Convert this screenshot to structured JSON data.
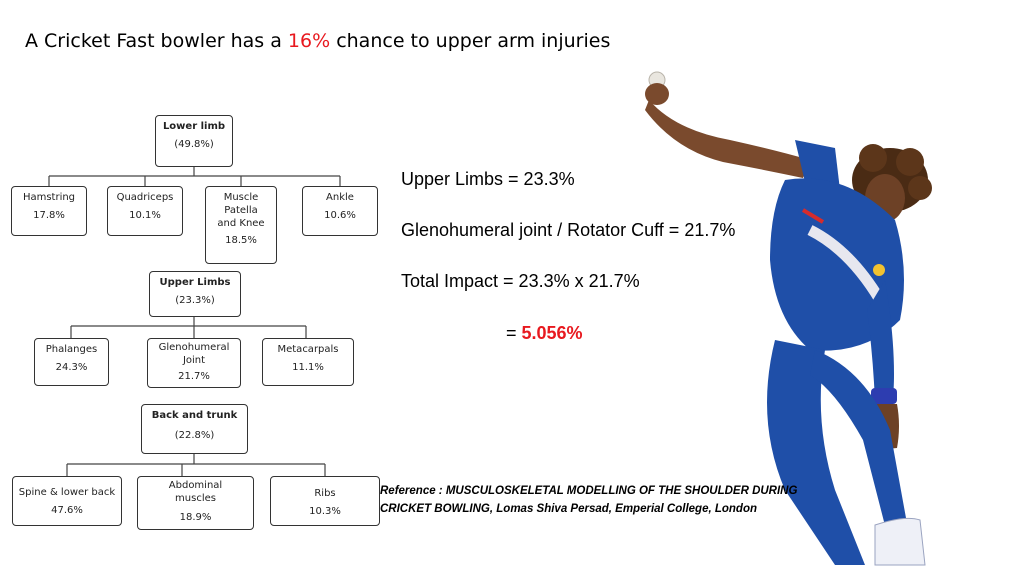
{
  "title": {
    "prefix": "A Cricket Fast bowler has a ",
    "highlight": "16%",
    "suffix": " chance to upper arm injuries"
  },
  "diagram": {
    "lower_limb": {
      "name": "Lower limb",
      "value": "(49.8%)",
      "children": [
        {
          "name": "Hamstring",
          "value": "17.8%"
        },
        {
          "name": "Quadriceps",
          "value": "10.1%"
        },
        {
          "name": "Muscle Patella and Knee",
          "value": "18.5%"
        },
        {
          "name": "Ankle",
          "value": "10.6%"
        }
      ]
    },
    "upper_limbs": {
      "name": "Upper Limbs",
      "value": "(23.3%)",
      "children": [
        {
          "name": "Phalanges",
          "value": "24.3%"
        },
        {
          "name": "Glenohumeral Joint",
          "value": "21.7%"
        },
        {
          "name": "Metacarpals",
          "value": "11.1%"
        }
      ]
    },
    "back_trunk": {
      "name": "Back and trunk",
      "value": "(22.8%)",
      "children": [
        {
          "name": "Spine & lower back",
          "value": "47.6%"
        },
        {
          "name": "Abdominal muscles",
          "value": "18.9%"
        },
        {
          "name": "Ribs",
          "value": "10.3%"
        }
      ]
    }
  },
  "equations": {
    "upper_limbs": "Upper Limbs = 23.3%",
    "glenohumeral": "Glenohumeral joint / Rotator Cuff = 21.7%",
    "total_impact": "Total Impact = 23.3% x 21.7%",
    "result_eq": "= ",
    "result_value": "5.056%"
  },
  "reference": "Reference : MUSCULOSKELETAL MODELLING OF THE SHOULDER DURING CRICKET BOWLING, Lomas Shiva Persad, Emperial College, London",
  "colors": {
    "highlight": "#e8191f",
    "jersey": "#1f4fa8"
  }
}
